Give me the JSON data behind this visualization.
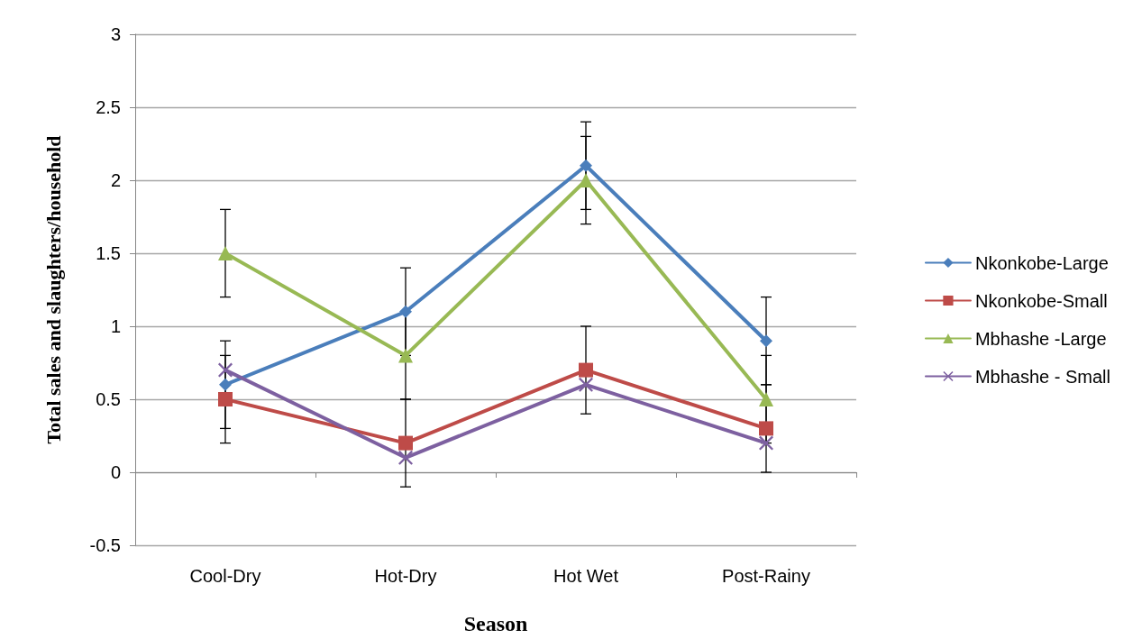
{
  "chart_data": {
    "type": "line",
    "xlabel": "Season",
    "ylabel": "Total sales and slaughters/household",
    "categories": [
      "Cool-Dry",
      "Hot-Dry",
      "Hot Wet",
      "Post-Rainy"
    ],
    "series": [
      {
        "name": "Nkonkobe-Large",
        "color": "#4a7ebb",
        "marker": "diamond",
        "values": [
          0.6,
          1.1,
          2.1,
          0.9
        ],
        "errors": [
          0.3,
          0.3,
          0.3,
          0.3
        ]
      },
      {
        "name": "Nkonkobe-Small",
        "color": "#be4b48",
        "marker": "square",
        "values": [
          0.5,
          0.2,
          0.7,
          0.3
        ],
        "errors": [
          0.3,
          0.3,
          0.3,
          0.3
        ]
      },
      {
        "name": "Mbhashe -Large",
        "color": "#98b954",
        "marker": "triangle",
        "values": [
          1.5,
          0.8,
          2.0,
          0.5
        ],
        "errors": [
          0.3,
          0.3,
          0.3,
          0.3
        ]
      },
      {
        "name": "Mbhashe - Small",
        "color": "#7d60a0",
        "marker": "cross",
        "values": [
          0.7,
          0.1,
          0.6,
          0.2
        ]
      }
    ],
    "ylim": [
      -0.5,
      3
    ],
    "yticks": [
      -0.5,
      0,
      0.5,
      1,
      1.5,
      2,
      2.5,
      3
    ],
    "grid": "y",
    "legend": "right",
    "line_style": "solid"
  }
}
